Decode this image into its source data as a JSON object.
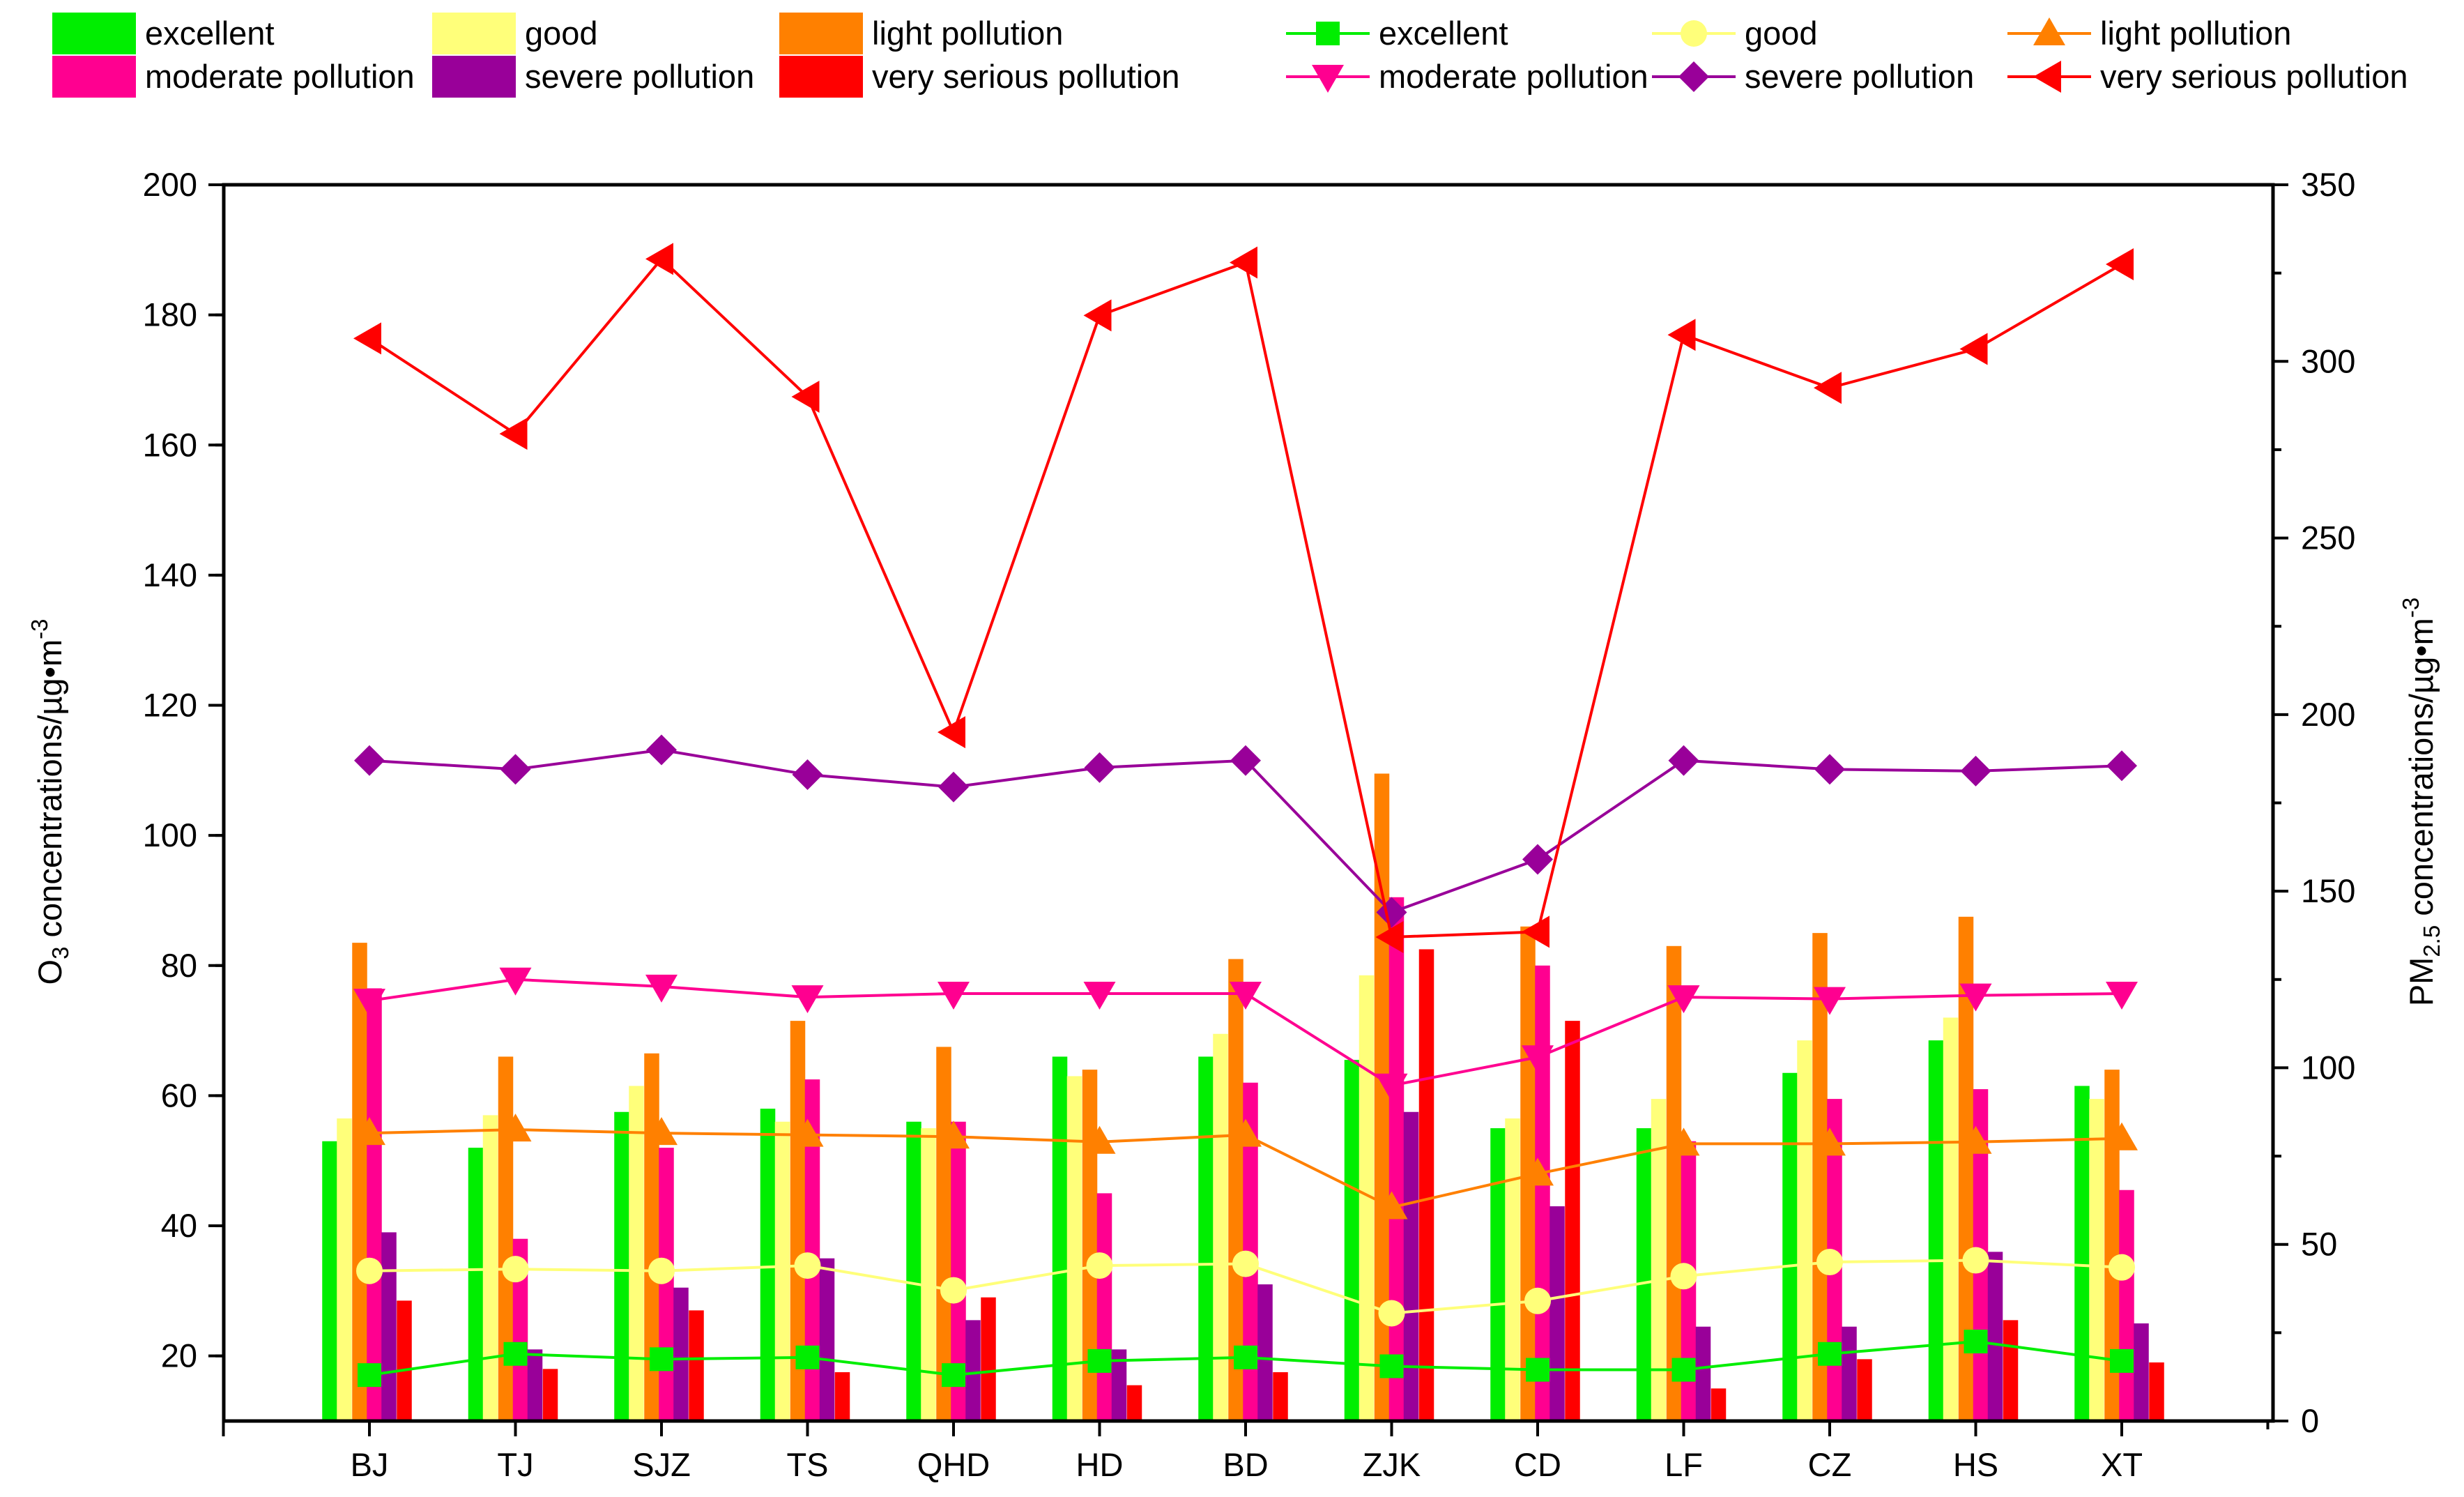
{
  "chart_data": {
    "type": "bar+line",
    "categories": [
      "BJ",
      "TJ",
      "SJZ",
      "TS",
      "QHD",
      "HD",
      "BD",
      "ZJK",
      "CD",
      "LF",
      "CZ",
      "HS",
      "XT"
    ],
    "left_axis": {
      "label_main": "O",
      "label_sub": "3",
      "label_rest": " concentrations/µg•m",
      "label_sup": "-3",
      "range": [
        10,
        200
      ],
      "ticks": [
        "20",
        "40",
        "60",
        "80",
        "100",
        "120",
        "140",
        "160",
        "180",
        "200"
      ]
    },
    "right_axis": {
      "label_main": "PM",
      "label_sub": "2.5",
      "label_rest": " concentrations/µg•m",
      "label_sup": "-3",
      "range": [
        0,
        350
      ],
      "ticks": [
        "0",
        "50",
        "100",
        "150",
        "200",
        "250",
        "300",
        "350"
      ]
    },
    "bar_series": [
      {
        "name": "excellent",
        "color": "#00ee00",
        "values": [
          53,
          52,
          57.5,
          58,
          56,
          66,
          66,
          65.5,
          55,
          55,
          63.5,
          68.5,
          61.5
        ]
      },
      {
        "name": "good",
        "color": "#ffff7a",
        "values": [
          56.5,
          57,
          61.5,
          56,
          55,
          63,
          69.5,
          78.5,
          56.5,
          59.5,
          68.5,
          72,
          59.5
        ]
      },
      {
        "name": "light pollution",
        "color": "#ff8000",
        "values": [
          83.5,
          66,
          66.5,
          71.5,
          67.5,
          64,
          81,
          109.5,
          86,
          83,
          85,
          87.5,
          64
        ]
      },
      {
        "name": "moderate pollution",
        "color": "#ff0090",
        "values": [
          76.5,
          38,
          52,
          62.5,
          56,
          45,
          62,
          90.5,
          80,
          53,
          59.5,
          61,
          45.5
        ]
      },
      {
        "name": "severe pollution",
        "color": "#990099",
        "values": [
          39,
          21,
          30.5,
          35,
          25.5,
          21,
          31,
          57.5,
          43,
          24.5,
          24.5,
          36,
          25
        ]
      },
      {
        "name": "very serious pollution",
        "color": "#ff0000",
        "values": [
          28.5,
          18,
          27,
          17.5,
          29,
          15.5,
          17.5,
          82.5,
          71.5,
          15,
          19.5,
          25.5,
          19
        ]
      }
    ],
    "line_series": [
      {
        "name": "excellent",
        "color": "#00ee00",
        "marker": "square",
        "values": [
          13,
          19,
          17.5,
          18,
          13,
          17,
          18,
          15.5,
          14.5,
          14.5,
          19,
          22.5,
          17
        ]
      },
      {
        "name": "good",
        "color": "#ffff7a",
        "marker": "circle",
        "values": [
          42.5,
          43,
          42.5,
          44,
          37,
          44,
          44.5,
          30.5,
          34,
          41,
          45,
          45.5,
          43.5
        ]
      },
      {
        "name": "light pollution",
        "color": "#ff8000",
        "marker": "triangle-up",
        "values": [
          81.5,
          82.5,
          81.5,
          81,
          80.5,
          79,
          81,
          60.5,
          70,
          78.5,
          78.5,
          79,
          80
        ]
      },
      {
        "name": "moderate pollution",
        "color": "#ff0090",
        "marker": "triangle-down",
        "values": [
          119,
          125,
          123,
          120,
          121,
          121,
          121,
          95,
          103,
          120,
          119.5,
          120.5,
          121
        ]
      },
      {
        "name": "severe pollution",
        "color": "#990099",
        "marker": "diamond",
        "values": [
          187,
          184.5,
          190,
          183,
          179.5,
          185,
          187,
          144,
          159,
          187,
          184.5,
          184,
          185.5
        ]
      },
      {
        "name": "very serious pollution",
        "color": "#ff0000",
        "marker": "triangle-left",
        "values": [
          306.5,
          279.5,
          329,
          290,
          195,
          313,
          328,
          137,
          138.5,
          307.5,
          292.5,
          303.5,
          327.5
        ]
      }
    ],
    "legend": {
      "bars": [
        "excellent",
        "good",
        "light pollution",
        "moderate pollution",
        "severe pollution",
        "very serious pollution"
      ],
      "lines": [
        "excellent",
        "good",
        "light pollution",
        "moderate pollution",
        "severe pollution",
        "very serious pollution"
      ],
      "placement": "top"
    }
  }
}
